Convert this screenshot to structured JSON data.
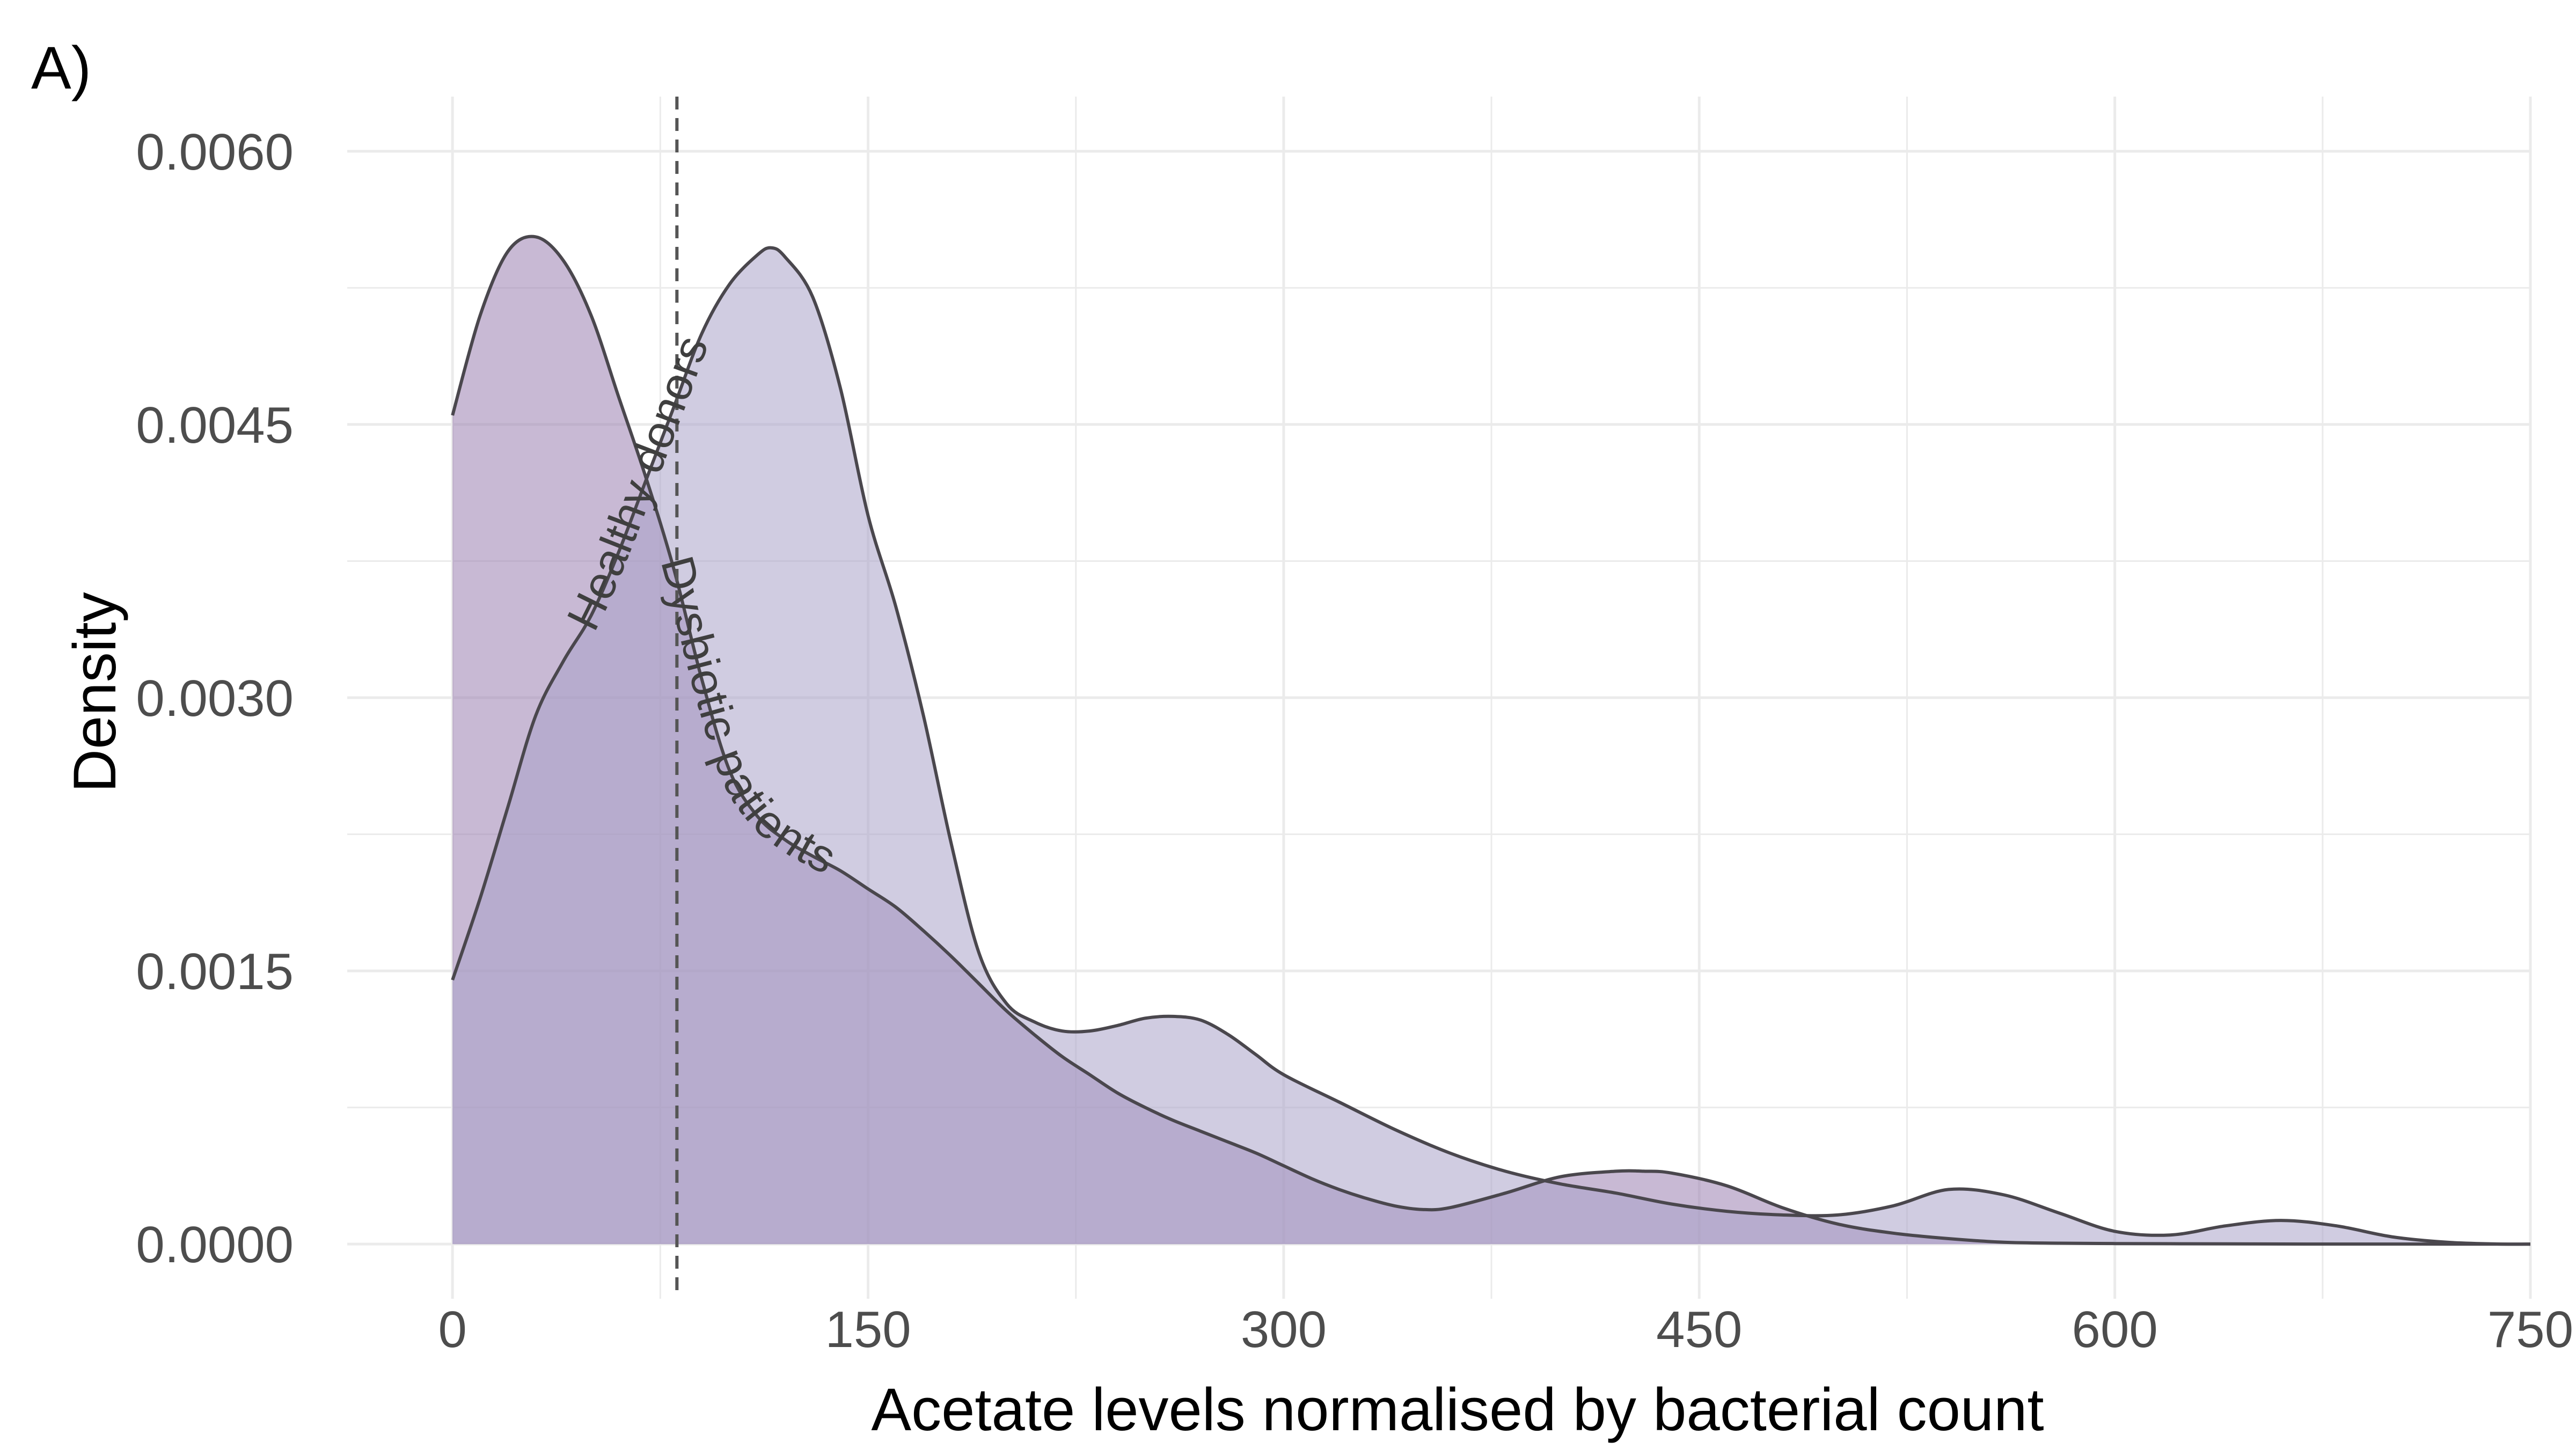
{
  "panel_label": "A)",
  "colors": {
    "dysbiotic": "#9b7fb1",
    "healthy": "#a9a3c9",
    "overlap": "#9d8bb6",
    "line": "#4a474d",
    "grid": "#ebebeb",
    "threshold": "#555555"
  },
  "chart_data": {
    "type": "area",
    "xlabel": "Acetate levels normalised by bacterial count",
    "ylabel": "Density",
    "xlim": [
      -38,
      750
    ],
    "ylim": [
      -0.0003,
      0.0063
    ],
    "xticks": [
      0,
      150,
      300,
      450,
      600,
      750
    ],
    "xtick_labels": [
      "0",
      "150",
      "300",
      "450",
      "600",
      "750"
    ],
    "yticks": [
      0,
      0.0015,
      0.003,
      0.0045,
      0.006
    ],
    "ytick_labels": [
      "0.0000",
      "0.0015",
      "0.0030",
      "0.0045",
      "0.0060"
    ],
    "grid": true,
    "legend": "none",
    "threshold_x": 81,
    "series": [
      {
        "name": "Dysbiotic patients",
        "label_text": "Dysbiotic patients",
        "x": [
          0,
          10,
          20,
          30,
          40,
          50,
          60,
          70,
          80,
          90,
          100,
          110,
          120,
          130,
          140,
          150,
          160,
          170,
          180,
          190,
          200,
          210,
          220,
          230,
          240,
          250,
          260,
          270,
          280,
          290,
          300,
          310,
          320,
          330,
          340,
          350,
          360,
          380,
          400,
          420,
          430,
          440,
          460,
          480,
          500,
          520,
          540,
          560,
          580,
          600,
          620,
          640,
          660,
          680,
          700,
          720,
          740,
          750
        ],
        "y": [
          0.00455,
          0.0051,
          0.00545,
          0.00553,
          0.0054,
          0.0051,
          0.00465,
          0.0042,
          0.0037,
          0.0031,
          0.0026,
          0.00235,
          0.00222,
          0.00213,
          0.00205,
          0.00195,
          0.00185,
          0.00172,
          0.00158,
          0.00143,
          0.00128,
          0.00115,
          0.00103,
          0.00093,
          0.00083,
          0.00075,
          0.00068,
          0.00062,
          0.00056,
          0.0005,
          0.00043,
          0.00036,
          0.0003,
          0.00025,
          0.00021,
          0.00019,
          0.0002,
          0.00028,
          0.00037,
          0.0004,
          0.0004,
          0.00039,
          0.00032,
          0.0002,
          0.00011,
          6e-05,
          3e-05,
          1e-05,
          5e-06,
          3e-06,
          2e-06,
          1e-06,
          5e-07,
          2e-07,
          1e-07,
          0,
          0,
          0
        ]
      },
      {
        "name": "Healthy donors",
        "label_text": "Healthy donors",
        "x": [
          0,
          10,
          20,
          30,
          40,
          50,
          60,
          70,
          80,
          90,
          100,
          110,
          115,
          120,
          130,
          140,
          150,
          160,
          170,
          180,
          190,
          200,
          210,
          220,
          230,
          240,
          250,
          260,
          270,
          280,
          290,
          300,
          320,
          340,
          360,
          380,
          400,
          420,
          440,
          460,
          480,
          500,
          520,
          540,
          560,
          580,
          600,
          620,
          640,
          660,
          680,
          700,
          720,
          740,
          750
        ],
        "y": [
          0.00145,
          0.0019,
          0.0024,
          0.0029,
          0.0032,
          0.00345,
          0.0038,
          0.0042,
          0.0046,
          0.005,
          0.00527,
          0.00543,
          0.00547,
          0.00542,
          0.0052,
          0.0047,
          0.004,
          0.0035,
          0.0029,
          0.0022,
          0.0016,
          0.00132,
          0.00122,
          0.00117,
          0.00117,
          0.0012,
          0.00124,
          0.00125,
          0.00123,
          0.00115,
          0.00104,
          0.00093,
          0.00078,
          0.00063,
          0.0005,
          0.0004,
          0.00033,
          0.00028,
          0.00022,
          0.00018,
          0.00016,
          0.00016,
          0.00021,
          0.0003,
          0.00027,
          0.00017,
          7e-05,
          5e-05,
          0.0001,
          0.00013,
          0.0001,
          4e-05,
          1e-05,
          0,
          0
        ]
      }
    ]
  }
}
